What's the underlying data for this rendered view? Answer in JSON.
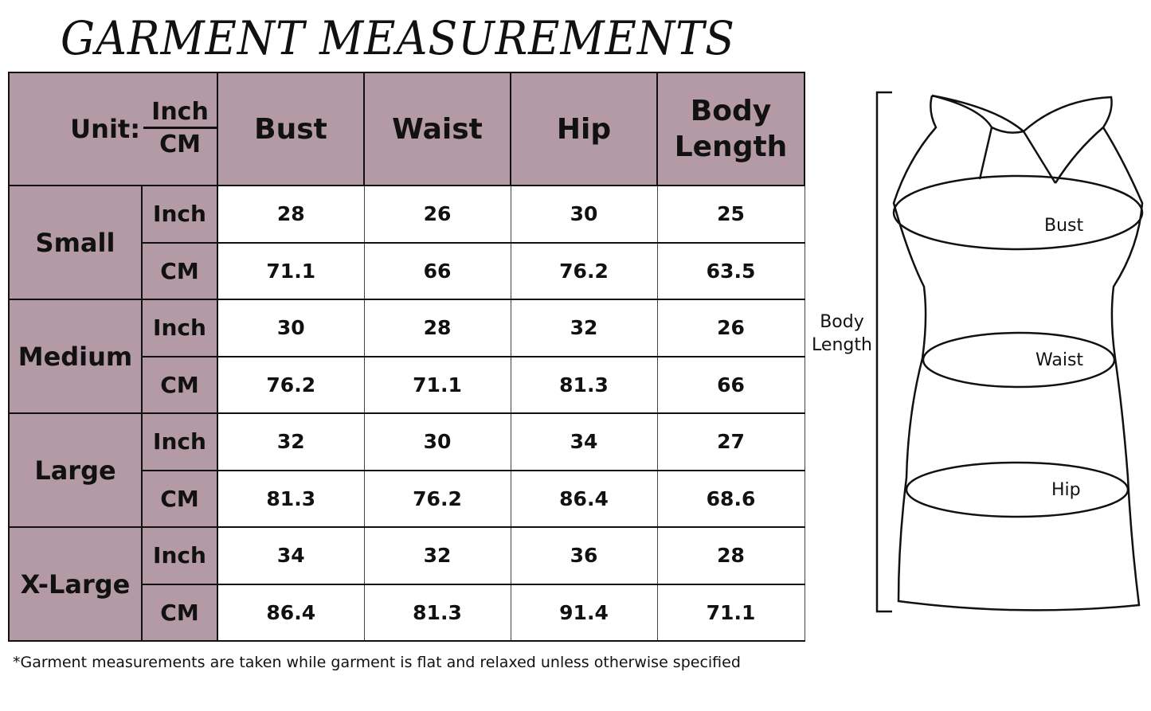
{
  "title": "GARMENT MEASUREMENTS",
  "table": {
    "unit_label": "Unit:",
    "unit_top": "Inch",
    "unit_bottom": "CM",
    "columns": [
      "Bust",
      "Waist",
      "Hip",
      "Body Length"
    ],
    "sizes": [
      {
        "name": "Small",
        "inch": [
          "28",
          "26",
          "30",
          "25"
        ],
        "cm": [
          "71.1",
          "66",
          "76.2",
          "63.5"
        ]
      },
      {
        "name": "Medium",
        "inch": [
          "30",
          "28",
          "32",
          "26"
        ],
        "cm": [
          "76.2",
          "71.1",
          "81.3",
          "66"
        ]
      },
      {
        "name": "Large",
        "inch": [
          "32",
          "30",
          "34",
          "27"
        ],
        "cm": [
          "81.3",
          "76.2",
          "86.4",
          "68.6"
        ]
      },
      {
        "name": "X-Large",
        "inch": [
          "34",
          "32",
          "36",
          "28"
        ],
        "cm": [
          "86.4",
          "81.3",
          "91.4",
          "71.1"
        ]
      }
    ],
    "inch_label": "Inch",
    "cm_label": "CM"
  },
  "note": "*Garment measurements are taken while garment is flat and relaxed unless otherwise specified",
  "diagram": {
    "bust": "Bust",
    "waist": "Waist",
    "hip": "Hip",
    "body_length_1": "Body",
    "body_length_2": "Length"
  },
  "colors": {
    "header": "#b39aa4"
  }
}
